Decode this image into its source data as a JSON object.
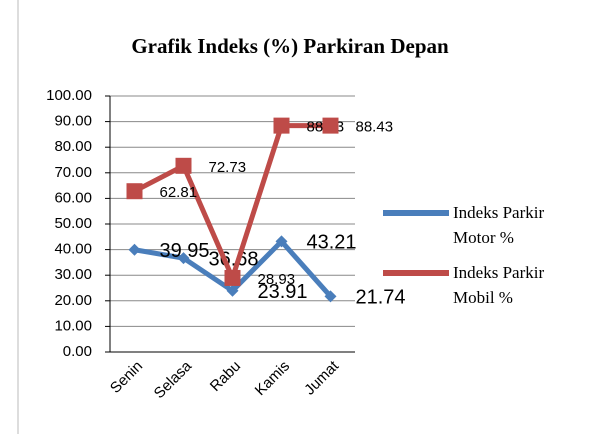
{
  "chart_data": {
    "type": "line",
    "title": "Grafik Indeks (%) Parkiran Depan",
    "categories": [
      "Senin",
      "Selasa",
      "Rabu",
      "Kamis",
      "Jumat"
    ],
    "series": [
      {
        "name": "Indeks Parkir Motor %",
        "color": "#4a7ebb",
        "values": [
          39.95,
          36.68,
          23.91,
          43.21,
          21.74
        ]
      },
      {
        "name": "Indeks Parkir Mobil %",
        "color": "#be4b48",
        "values": [
          62.81,
          72.73,
          28.93,
          88.43,
          88.43
        ]
      }
    ],
    "ylim": [
      0,
      100
    ],
    "yticks": [
      {
        "value": 0,
        "label": "0.00"
      },
      {
        "value": 10,
        "label": "10.00"
      },
      {
        "value": 20,
        "label": "20.00"
      },
      {
        "value": 30,
        "label": "30.00"
      },
      {
        "value": 40,
        "label": "40.00"
      },
      {
        "value": 50,
        "label": "50.00"
      },
      {
        "value": 60,
        "label": "60.00"
      },
      {
        "value": 70,
        "label": "70.00"
      },
      {
        "value": 80,
        "label": "80.00"
      },
      {
        "value": 90,
        "label": "90.00"
      },
      {
        "value": 100,
        "label": "100.00"
      }
    ],
    "grid": true,
    "legend": "right"
  }
}
